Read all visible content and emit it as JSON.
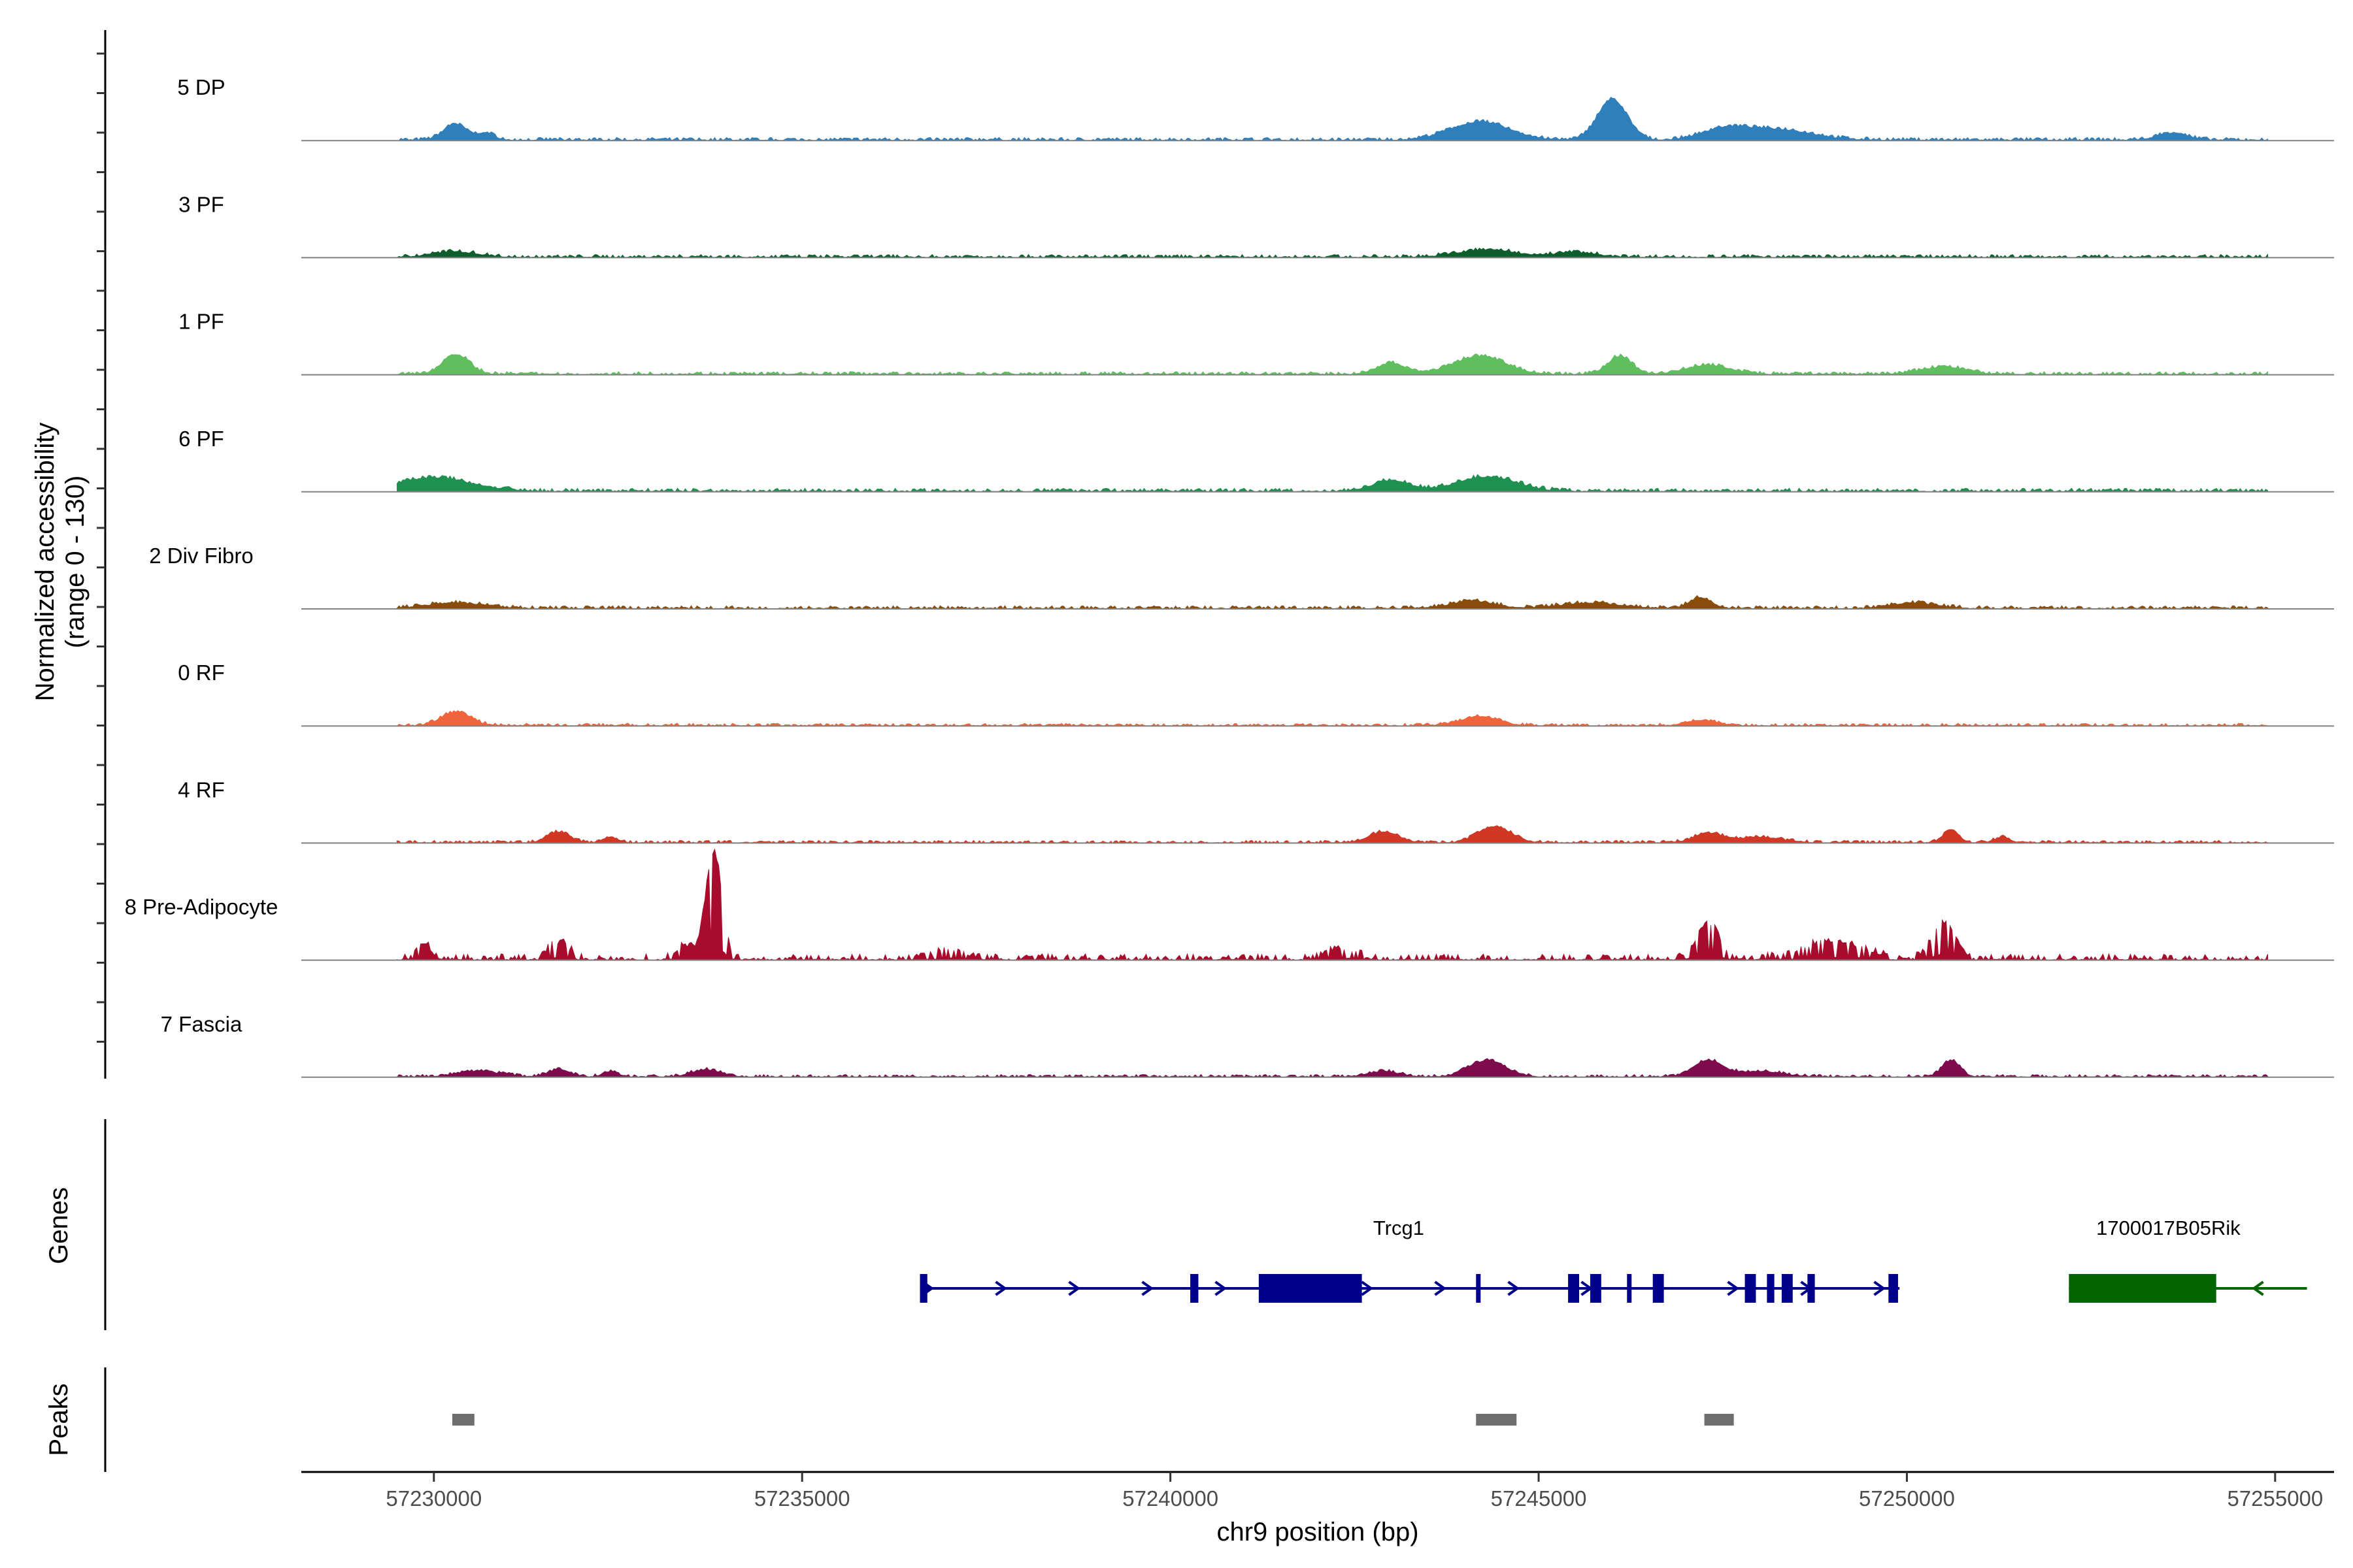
{
  "chart_data": {
    "type": "area",
    "title": "",
    "ylabel": "Normalized accessibility",
    "ylabel_range": "(range 0 - 130)",
    "xlabel": "chr9 position (bp)",
    "xlim": [
      57228200,
      57255800
    ],
    "ylim": [
      0,
      130
    ],
    "x_ticks": [
      57230000,
      57235000,
      57240000,
      57245000,
      57250000,
      57255000
    ],
    "x_tick_labels": [
      "57230000",
      "57235000",
      "57240000",
      "57245000",
      "57250000",
      "57255000"
    ],
    "track_start": 57229500,
    "track_end": 57254900,
    "baseline": 3,
    "series": [
      {
        "name": "5 DP",
        "color": "#2e7fbc",
        "noise": 3.5,
        "peaks": [
          [
            57230280,
            150,
            18
          ],
          [
            57230700,
            120,
            8
          ],
          [
            57244200,
            400,
            20
          ],
          [
            57246000,
            200,
            45
          ],
          [
            57247500,
            300,
            10
          ],
          [
            57248200,
            500,
            12
          ],
          [
            57253600,
            200,
            8
          ]
        ]
      },
      {
        "name": "3 PF",
        "color": "#0d5e2c",
        "noise": 3.5,
        "peaks": [
          [
            57230300,
            300,
            6
          ],
          [
            57244300,
            400,
            8
          ],
          [
            57245500,
            300,
            5
          ]
        ]
      },
      {
        "name": "1 PF",
        "color": "#5fbf5f",
        "noise": 3.5,
        "peaks": [
          [
            57230300,
            180,
            22
          ],
          [
            57243000,
            200,
            12
          ],
          [
            57244200,
            350,
            20
          ],
          [
            57246100,
            160,
            20
          ],
          [
            57247300,
            300,
            10
          ],
          [
            57250500,
            300,
            8
          ]
        ]
      },
      {
        "name": "6 PF",
        "color": "#1e9150",
        "noise": 4,
        "peaks": [
          [
            57230000,
            500,
            15
          ],
          [
            57243000,
            250,
            12
          ],
          [
            57244300,
            400,
            16
          ]
        ]
      },
      {
        "name": "2 Div Fibro",
        "color": "#8a4d09",
        "noise": 3.5,
        "peaks": [
          [
            57230300,
            400,
            6
          ],
          [
            57244100,
            300,
            8
          ],
          [
            57245700,
            400,
            6
          ],
          [
            57247200,
            150,
            12
          ],
          [
            57250100,
            300,
            6
          ]
        ]
      },
      {
        "name": "0 RF",
        "color": "#f0643c",
        "noise": 3,
        "peaks": [
          [
            57230300,
            200,
            15
          ],
          [
            57244200,
            250,
            10
          ],
          [
            57247200,
            200,
            6
          ]
        ]
      },
      {
        "name": "4 RF",
        "color": "#d03724",
        "noise": 3,
        "peaks": [
          [
            57231700,
            150,
            12
          ],
          [
            57232400,
            100,
            6
          ],
          [
            57242900,
            200,
            12
          ],
          [
            57244400,
            220,
            18
          ],
          [
            57247300,
            200,
            10
          ],
          [
            57248000,
            300,
            6
          ],
          [
            57250600,
            100,
            15
          ],
          [
            57251300,
            100,
            6
          ]
        ]
      },
      {
        "name": "8 Pre-Adipocyte",
        "color": "#a80c2c",
        "noise": 7,
        "peaks": [
          [
            57229850,
            100,
            18
          ],
          [
            57231700,
            150,
            18
          ],
          [
            57233400,
            120,
            14
          ],
          [
            57233800,
            110,
            118
          ],
          [
            57237000,
            200,
            10
          ],
          [
            57242300,
            200,
            12
          ],
          [
            57247300,
            150,
            40
          ],
          [
            57249000,
            400,
            20
          ],
          [
            57250500,
            150,
            40
          ]
        ]
      },
      {
        "name": "7 Fascia",
        "color": "#7d0b4d",
        "noise": 3,
        "peaks": [
          [
            57230600,
            300,
            6
          ],
          [
            57231700,
            150,
            8
          ],
          [
            57232400,
            100,
            6
          ],
          [
            57233700,
            200,
            8
          ],
          [
            57242900,
            200,
            6
          ],
          [
            57244300,
            250,
            18
          ],
          [
            57247300,
            200,
            18
          ],
          [
            57248000,
            300,
            6
          ],
          [
            57250600,
            120,
            18
          ]
        ]
      }
    ],
    "genes_label": "Genes",
    "genes": [
      {
        "name": "Trcg1",
        "color": "#00008b",
        "strand": "+",
        "start": 57236600,
        "end": 57249900,
        "exons": [
          [
            57236600,
            57236700
          ],
          [
            57240270,
            57240380
          ],
          [
            57241200,
            57242600
          ],
          [
            57244150,
            57244200
          ],
          [
            57245400,
            57245550
          ],
          [
            57245700,
            57245850
          ],
          [
            57246200,
            57246250
          ],
          [
            57246550,
            57246700
          ],
          [
            57247800,
            57247950
          ],
          [
            57248100,
            57248200
          ],
          [
            57248300,
            57248450
          ],
          [
            57248650,
            57248750
          ],
          [
            57249750,
            57249880
          ]
        ]
      },
      {
        "name": "1700017B05Rik",
        "color": "#006400",
        "strand": "-",
        "start": 57252200,
        "end": 57254900,
        "exons": [
          [
            57252200,
            57254200
          ]
        ]
      }
    ],
    "peaks_label": "Peaks",
    "peaks": [
      [
        57230250,
        57230550
      ],
      [
        57244150,
        57244700
      ],
      [
        57247250,
        57247650
      ]
    ]
  }
}
